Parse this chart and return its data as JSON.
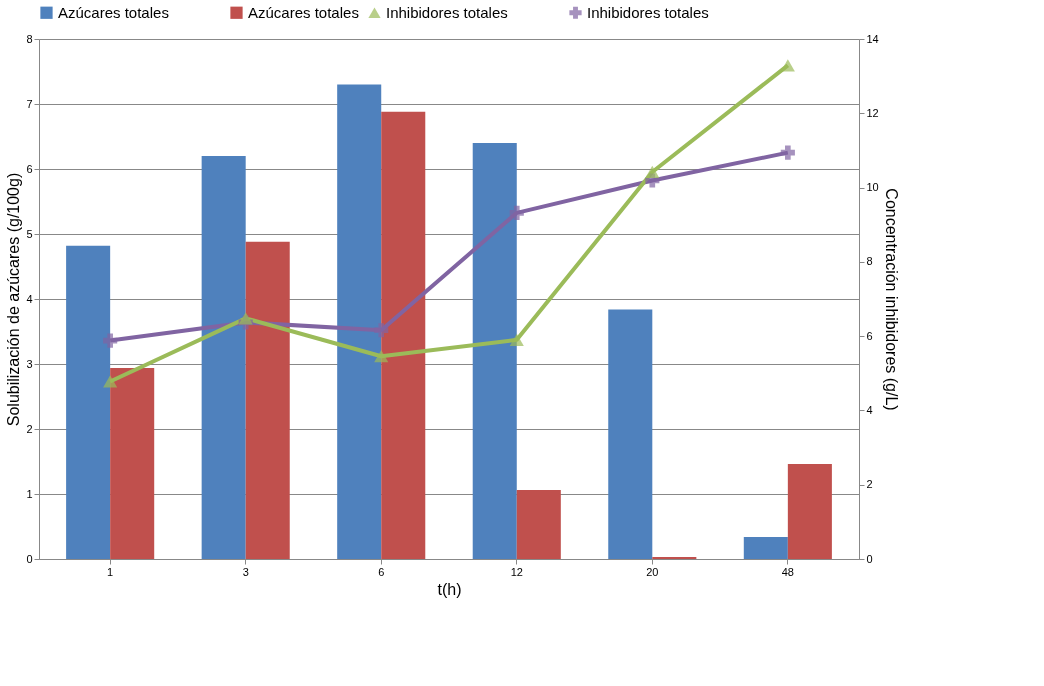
{
  "chart_data": {
    "type": "bar",
    "xlabel": "t(h)",
    "ylabel": "Solubilización de azúcares (g/100g)",
    "y2label": "Concentración  inhibidores (g/L)",
    "categories": [
      "1",
      "3",
      "6",
      "12",
      "20",
      "48"
    ],
    "series": [
      {
        "name": "Azúcares totales",
        "color": "#4f81bd",
        "values": [
          4.82,
          6.2,
          7.3,
          6.4,
          3.84,
          0.34
        ]
      },
      {
        "name": "Azúcares totales",
        "color": "#c0504d",
        "values": [
          2.94,
          4.88,
          6.88,
          1.06,
          0.03,
          1.46
        ]
      },
      {
        "name": "Inhibidores totales",
        "type": "line",
        "axis": "y2",
        "marker": "triangle",
        "color": "#9bbb59",
        "values": [
          4.78,
          6.48,
          5.46,
          5.9,
          10.42,
          13.29
        ]
      },
      {
        "name": "Inhibidores totales",
        "type": "line",
        "axis": "y2",
        "marker": "cross",
        "color": "#8064a2",
        "values": [
          5.88,
          6.37,
          6.16,
          9.32,
          10.19,
          10.94
        ]
      }
    ],
    "ylim": [
      0,
      8
    ],
    "yticks": [
      0,
      1,
      2,
      3,
      4,
      5,
      6,
      7,
      8
    ],
    "y2lim": [
      0,
      14
    ],
    "y2ticks": [
      0,
      2,
      4,
      6,
      8,
      10,
      12,
      14
    ],
    "grid": "y",
    "legend": "top"
  }
}
